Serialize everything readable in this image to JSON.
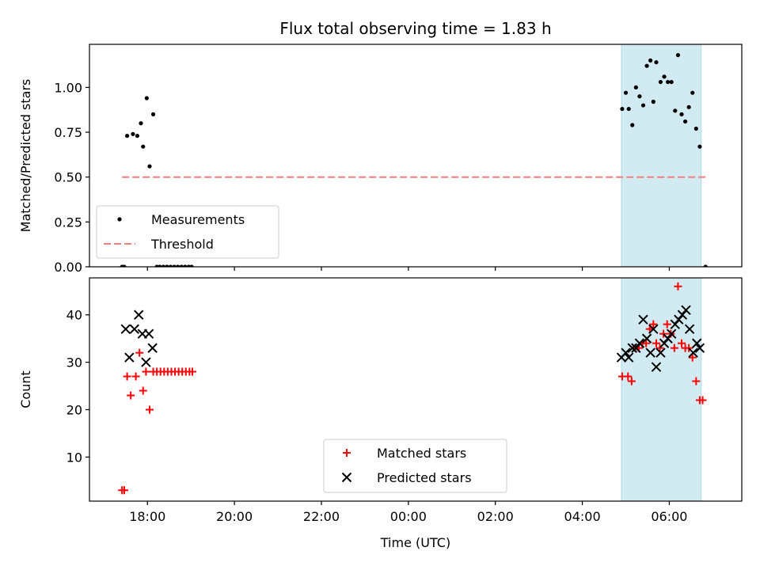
{
  "chart_data": [
    {
      "type": "scatter",
      "title": "Flux total observing time = 1.83 h",
      "ylabel": "Matched/Predicted stars",
      "xlabel": "",
      "x_axis": {
        "type": "time",
        "start": "2023-01-01T16:40",
        "end": "2023-01-02T07:40"
      },
      "ylim": [
        0,
        1.24
      ],
      "yticks": [
        0.0,
        0.25,
        0.5,
        0.75,
        1.0
      ],
      "ytick_labels": [
        "0.00",
        "0.25",
        "0.50",
        "0.75",
        "1.00"
      ],
      "xticks": [
        "2023-01-01T18:00",
        "2023-01-01T20:00",
        "2023-01-01T22:00",
        "2023-01-02T00:00",
        "2023-01-02T02:00",
        "2023-01-02T04:00",
        "2023-01-02T06:00"
      ],
      "xtick_labels": [
        "",
        "",
        "",
        "",
        "",
        "",
        ""
      ],
      "highlight_span": {
        "start": "2023-01-02T04:54",
        "end": "2023-01-02T06:44",
        "color": "#add8e6"
      },
      "threshold": {
        "name": "Threshold",
        "value": 0.5,
        "start": "2023-01-01T17:25",
        "end": "2023-01-02T06:50",
        "color": "#f08080"
      },
      "legend": {
        "position": "lower-left",
        "entries": [
          "Measurements",
          "Threshold"
        ]
      },
      "series": [
        {
          "name": "Measurements",
          "color": "#000000",
          "marker": "dot",
          "points": [
            [
              "2023-01-01T17:25",
              0.0
            ],
            [
              "2023-01-01T17:28",
              0.0
            ],
            [
              "2023-01-01T17:32",
              0.73
            ],
            [
              "2023-01-01T17:40",
              0.74
            ],
            [
              "2023-01-01T17:46",
              0.73
            ],
            [
              "2023-01-01T17:51",
              0.8
            ],
            [
              "2023-01-01T17:54",
              0.67
            ],
            [
              "2023-01-01T17:59",
              0.94
            ],
            [
              "2023-01-01T18:03",
              0.56
            ],
            [
              "2023-01-01T18:08",
              0.85
            ],
            [
              "2023-01-01T18:13",
              0.0
            ],
            [
              "2023-01-01T18:17",
              0.0
            ],
            [
              "2023-01-01T18:22",
              0.0
            ],
            [
              "2023-01-01T18:27",
              0.0
            ],
            [
              "2023-01-01T18:32",
              0.0
            ],
            [
              "2023-01-01T18:37",
              0.0
            ],
            [
              "2023-01-01T18:42",
              0.0
            ],
            [
              "2023-01-01T18:47",
              0.0
            ],
            [
              "2023-01-01T18:52",
              0.0
            ],
            [
              "2023-01-01T18:57",
              0.0
            ],
            [
              "2023-01-01T19:01",
              0.0
            ],
            [
              "2023-01-02T04:55",
              0.88
            ],
            [
              "2023-01-02T05:00",
              0.97
            ],
            [
              "2023-01-02T05:04",
              0.88
            ],
            [
              "2023-01-02T05:09",
              0.79
            ],
            [
              "2023-01-02T05:14",
              1.0
            ],
            [
              "2023-01-02T05:19",
              0.95
            ],
            [
              "2023-01-02T05:24",
              0.9
            ],
            [
              "2023-01-02T05:29",
              1.12
            ],
            [
              "2023-01-02T05:34",
              1.15
            ],
            [
              "2023-01-02T05:38",
              0.92
            ],
            [
              "2023-01-02T05:42",
              1.14
            ],
            [
              "2023-01-02T05:48",
              1.03
            ],
            [
              "2023-01-02T05:53",
              1.06
            ],
            [
              "2023-01-02T05:58",
              1.03
            ],
            [
              "2023-01-02T06:03",
              1.03
            ],
            [
              "2023-01-02T06:08",
              0.87
            ],
            [
              "2023-01-02T06:12",
              1.18
            ],
            [
              "2023-01-02T06:17",
              0.85
            ],
            [
              "2023-01-02T06:22",
              0.81
            ],
            [
              "2023-01-02T06:27",
              0.89
            ],
            [
              "2023-01-02T06:32",
              0.97
            ],
            [
              "2023-01-02T06:37",
              0.77
            ],
            [
              "2023-01-02T06:42",
              0.67
            ],
            [
              "2023-01-02T06:50",
              0.0
            ]
          ]
        }
      ]
    },
    {
      "type": "scatter",
      "title": "",
      "ylabel": "Count",
      "xlabel": "Time (UTC)",
      "x_axis": {
        "type": "time",
        "start": "2023-01-01T16:40",
        "end": "2023-01-02T07:40"
      },
      "ylim": [
        0.7,
        47.8
      ],
      "yticks": [
        10,
        20,
        30,
        40
      ],
      "ytick_labels": [
        "10",
        "20",
        "30",
        "40"
      ],
      "xticks": [
        "2023-01-01T18:00",
        "2023-01-01T20:00",
        "2023-01-01T22:00",
        "2023-01-02T00:00",
        "2023-01-02T02:00",
        "2023-01-02T04:00",
        "2023-01-02T06:00"
      ],
      "xtick_labels": [
        "18:00",
        "20:00",
        "22:00",
        "00:00",
        "02:00",
        "04:00",
        "06:00"
      ],
      "highlight_span": {
        "start": "2023-01-02T04:54",
        "end": "2023-01-02T06:44",
        "color": "#add8e6"
      },
      "legend": {
        "position": "lower-center",
        "entries": [
          "Matched stars",
          "Predicted stars"
        ]
      },
      "series": [
        {
          "name": "Matched stars",
          "color": "#ff0000",
          "marker": "plus",
          "points": [
            [
              "2023-01-01T17:25",
              3
            ],
            [
              "2023-01-01T17:28",
              3
            ],
            [
              "2023-01-01T17:32",
              27
            ],
            [
              "2023-01-01T17:37",
              23
            ],
            [
              "2023-01-01T17:44",
              27
            ],
            [
              "2023-01-01T17:49",
              32
            ],
            [
              "2023-01-01T17:54",
              24
            ],
            [
              "2023-01-01T17:58",
              28
            ],
            [
              "2023-01-01T18:03",
              20
            ],
            [
              "2023-01-01T18:08",
              28
            ],
            [
              "2023-01-01T18:13",
              28
            ],
            [
              "2023-01-01T18:18",
              28
            ],
            [
              "2023-01-01T18:23",
              28
            ],
            [
              "2023-01-01T18:28",
              28
            ],
            [
              "2023-01-01T18:33",
              28
            ],
            [
              "2023-01-01T18:38",
              28
            ],
            [
              "2023-01-01T18:43",
              28
            ],
            [
              "2023-01-01T18:48",
              28
            ],
            [
              "2023-01-01T18:53",
              28
            ],
            [
              "2023-01-01T18:58",
              28
            ],
            [
              "2023-01-01T19:02",
              28
            ],
            [
              "2023-01-02T04:55",
              27
            ],
            [
              "2023-01-02T05:03",
              27
            ],
            [
              "2023-01-02T05:08",
              26
            ],
            [
              "2023-01-02T05:13",
              33
            ],
            [
              "2023-01-02T05:18",
              33
            ],
            [
              "2023-01-02T05:23",
              34
            ],
            [
              "2023-01-02T05:28",
              34
            ],
            [
              "2023-01-02T05:33",
              37
            ],
            [
              "2023-01-02T05:38",
              38
            ],
            [
              "2023-01-02T05:42",
              34
            ],
            [
              "2023-01-02T05:47",
              33
            ],
            [
              "2023-01-02T05:52",
              36
            ],
            [
              "2023-01-02T05:57",
              38
            ],
            [
              "2023-01-02T06:02",
              36
            ],
            [
              "2023-01-02T06:07",
              33
            ],
            [
              "2023-01-02T06:12",
              46
            ],
            [
              "2023-01-02T06:17",
              34
            ],
            [
              "2023-01-02T06:22",
              33
            ],
            [
              "2023-01-02T06:27",
              33
            ],
            [
              "2023-01-02T06:32",
              31
            ],
            [
              "2023-01-02T06:37",
              26
            ],
            [
              "2023-01-02T06:42",
              22
            ],
            [
              "2023-01-02T06:46",
              22
            ]
          ]
        },
        {
          "name": "Predicted stars",
          "color": "#000000",
          "marker": "x",
          "points": [
            [
              "2023-01-01T17:30",
              37
            ],
            [
              "2023-01-01T17:35",
              31
            ],
            [
              "2023-01-01T17:42",
              37
            ],
            [
              "2023-01-01T17:48",
              40
            ],
            [
              "2023-01-01T17:53",
              36
            ],
            [
              "2023-01-01T17:58",
              30
            ],
            [
              "2023-01-01T18:02",
              36
            ],
            [
              "2023-01-01T18:07",
              33
            ],
            [
              "2023-01-02T04:54",
              31
            ],
            [
              "2023-01-02T05:00",
              32
            ],
            [
              "2023-01-02T05:04",
              31
            ],
            [
              "2023-01-02T05:09",
              33
            ],
            [
              "2023-01-02T05:14",
              33
            ],
            [
              "2023-01-02T05:19",
              34
            ],
            [
              "2023-01-02T05:24",
              39
            ],
            [
              "2023-01-02T05:29",
              35
            ],
            [
              "2023-01-02T05:34",
              32
            ],
            [
              "2023-01-02T05:38",
              37
            ],
            [
              "2023-01-02T05:42",
              29
            ],
            [
              "2023-01-02T05:48",
              32
            ],
            [
              "2023-01-02T05:53",
              34
            ],
            [
              "2023-01-02T05:58",
              35
            ],
            [
              "2023-01-02T06:03",
              36
            ],
            [
              "2023-01-02T06:08",
              38
            ],
            [
              "2023-01-02T06:13",
              39
            ],
            [
              "2023-01-02T06:18",
              40
            ],
            [
              "2023-01-02T06:23",
              41
            ],
            [
              "2023-01-02T06:28",
              37
            ],
            [
              "2023-01-02T06:33",
              32
            ],
            [
              "2023-01-02T06:38",
              34
            ],
            [
              "2023-01-02T06:42",
              33
            ]
          ]
        }
      ]
    }
  ]
}
